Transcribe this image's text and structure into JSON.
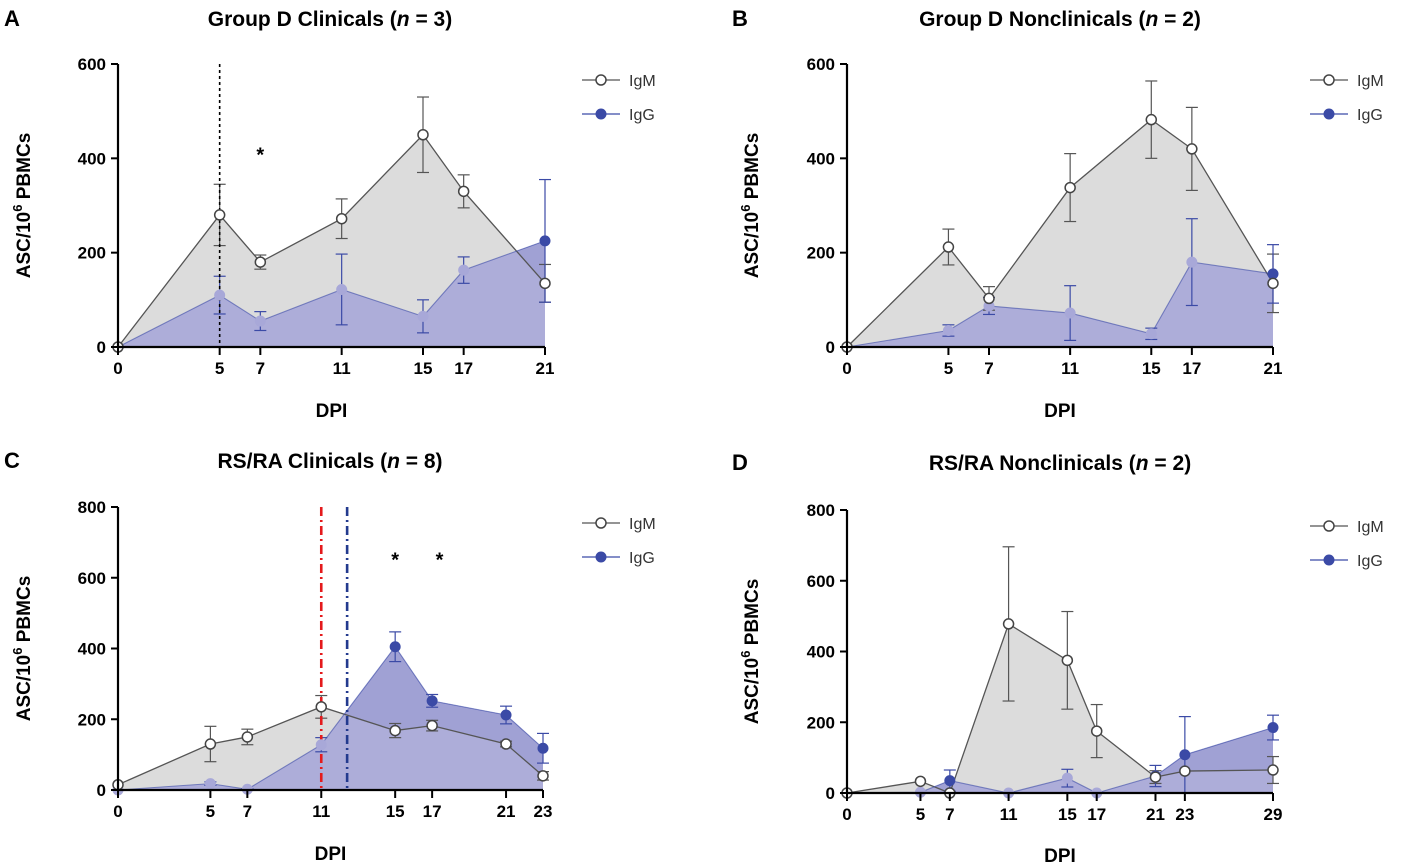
{
  "colors": {
    "igm": "#555555",
    "igm_fill": "#dcdcdc",
    "igg": "#3b4aa6",
    "igg_fill": "#a8a8d8",
    "igg_dark_fill": "#3d4aa3",
    "red_line": "#e41a1c",
    "blue_line": "#233a8e"
  },
  "chart_data": [
    {
      "panel": "A",
      "type": "line",
      "title_text": "Group D Clinicals (",
      "title_n": "n",
      "title_end": " = 3)",
      "xlabel": "DPI",
      "ylabel_main": "ASC/10",
      "ylabel_sup": "6",
      "ylabel_end": " PBMCs",
      "x": [
        0,
        5,
        7,
        11,
        15,
        17,
        21
      ],
      "xlim": [
        0,
        21
      ],
      "ylim": [
        0,
        600
      ],
      "yticks": [
        0,
        200,
        400,
        600
      ],
      "series": [
        {
          "name": "IgM",
          "values": [
            0,
            280,
            180,
            272,
            450,
            330,
            135
          ],
          "err": [
            0,
            65,
            15,
            42,
            80,
            35,
            40
          ]
        },
        {
          "name": "IgG",
          "values": [
            0,
            110,
            55,
            122,
            65,
            163,
            225
          ],
          "err": [
            0,
            40,
            20,
            75,
            35,
            28,
            130
          ]
        }
      ],
      "vlines": [
        {
          "x": 5,
          "style": "black-dotted"
        }
      ],
      "stars": [
        {
          "x": 7,
          "y": 410,
          "text": "*"
        }
      ],
      "legend": [
        "IgM",
        "IgG"
      ]
    },
    {
      "panel": "B",
      "type": "line",
      "title_text": "Group D Nonclinicals (",
      "title_n": "n",
      "title_end": " = 2)",
      "xlabel": "DPI",
      "ylabel_main": "ASC/10",
      "ylabel_sup": "6",
      "ylabel_end": " PBMCs",
      "x": [
        0,
        5,
        7,
        11,
        15,
        17,
        21
      ],
      "xlim": [
        0,
        21
      ],
      "ylim": [
        0,
        600
      ],
      "yticks": [
        0,
        200,
        400,
        600
      ],
      "series": [
        {
          "name": "IgM",
          "values": [
            0,
            212,
            103,
            338,
            482,
            420,
            135
          ],
          "err": [
            0,
            38,
            25,
            72,
            82,
            88,
            62
          ]
        },
        {
          "name": "IgG",
          "values": [
            0,
            35,
            87,
            72,
            28,
            180,
            155
          ],
          "err": [
            0,
            12,
            18,
            58,
            12,
            92,
            62
          ]
        }
      ],
      "vlines": [],
      "stars": [],
      "legend": [
        "IgM",
        "IgG"
      ]
    },
    {
      "panel": "C",
      "type": "line",
      "title_text": "RS/RA Clinicals (",
      "title_n": "n",
      "title_end": " = 8)",
      "xlabel": "DPI",
      "ylabel_main": "ASC/10",
      "ylabel_sup": "6",
      "ylabel_end": " PBMCs",
      "x": [
        0,
        5,
        7,
        11,
        15,
        17,
        21,
        23
      ],
      "xlim": [
        0,
        23
      ],
      "ylim": [
        0,
        800
      ],
      "yticks": [
        0,
        200,
        400,
        600,
        800
      ],
      "series": [
        {
          "name": "IgM",
          "values": [
            15,
            130,
            150,
            235,
            168,
            182,
            130,
            40
          ],
          "err": [
            0,
            50,
            22,
            32,
            20,
            15,
            8,
            12
          ]
        },
        {
          "name": "IgG",
          "values": [
            0,
            18,
            2,
            128,
            405,
            252,
            212,
            118
          ],
          "err": [
            0,
            5,
            2,
            20,
            42,
            18,
            25,
            42
          ]
        }
      ],
      "vlines": [
        {
          "x": 11,
          "style": "red-dashdot"
        },
        {
          "x": 12.4,
          "style": "blue-dashdot"
        }
      ],
      "stars": [
        {
          "x": 15,
          "y": 655,
          "text": "*"
        },
        {
          "x": 17.4,
          "y": 655,
          "text": "*"
        }
      ],
      "legend": [
        "IgM",
        "IgG"
      ]
    },
    {
      "panel": "D",
      "type": "line",
      "title_text": "RS/RA Nonclinicals (",
      "title_n": "n",
      "title_end": " = 2)",
      "xlabel": "DPI",
      "ylabel_main": "ASC/10",
      "ylabel_sup": "6",
      "ylabel_end": " PBMCs",
      "x": [
        0,
        5,
        7,
        11,
        15,
        17,
        21,
        23,
        29
      ],
      "xlim": [
        0,
        29
      ],
      "ylim": [
        0,
        800
      ],
      "yticks": [
        0,
        200,
        400,
        600,
        800
      ],
      "series": [
        {
          "name": "IgM",
          "values": [
            0,
            33,
            0,
            478,
            375,
            175,
            45,
            62,
            65
          ],
          "err": [
            0,
            0,
            0,
            218,
            138,
            75,
            18,
            0,
            38
          ]
        },
        {
          "name": "IgG",
          "values": [
            0,
            2,
            35,
            0,
            42,
            0,
            48,
            108,
            185
          ],
          "err": [
            0,
            0,
            30,
            0,
            25,
            0,
            30,
            108,
            35
          ]
        }
      ],
      "vlines": [],
      "stars": [],
      "legend": [
        "IgM",
        "IgG"
      ]
    }
  ]
}
